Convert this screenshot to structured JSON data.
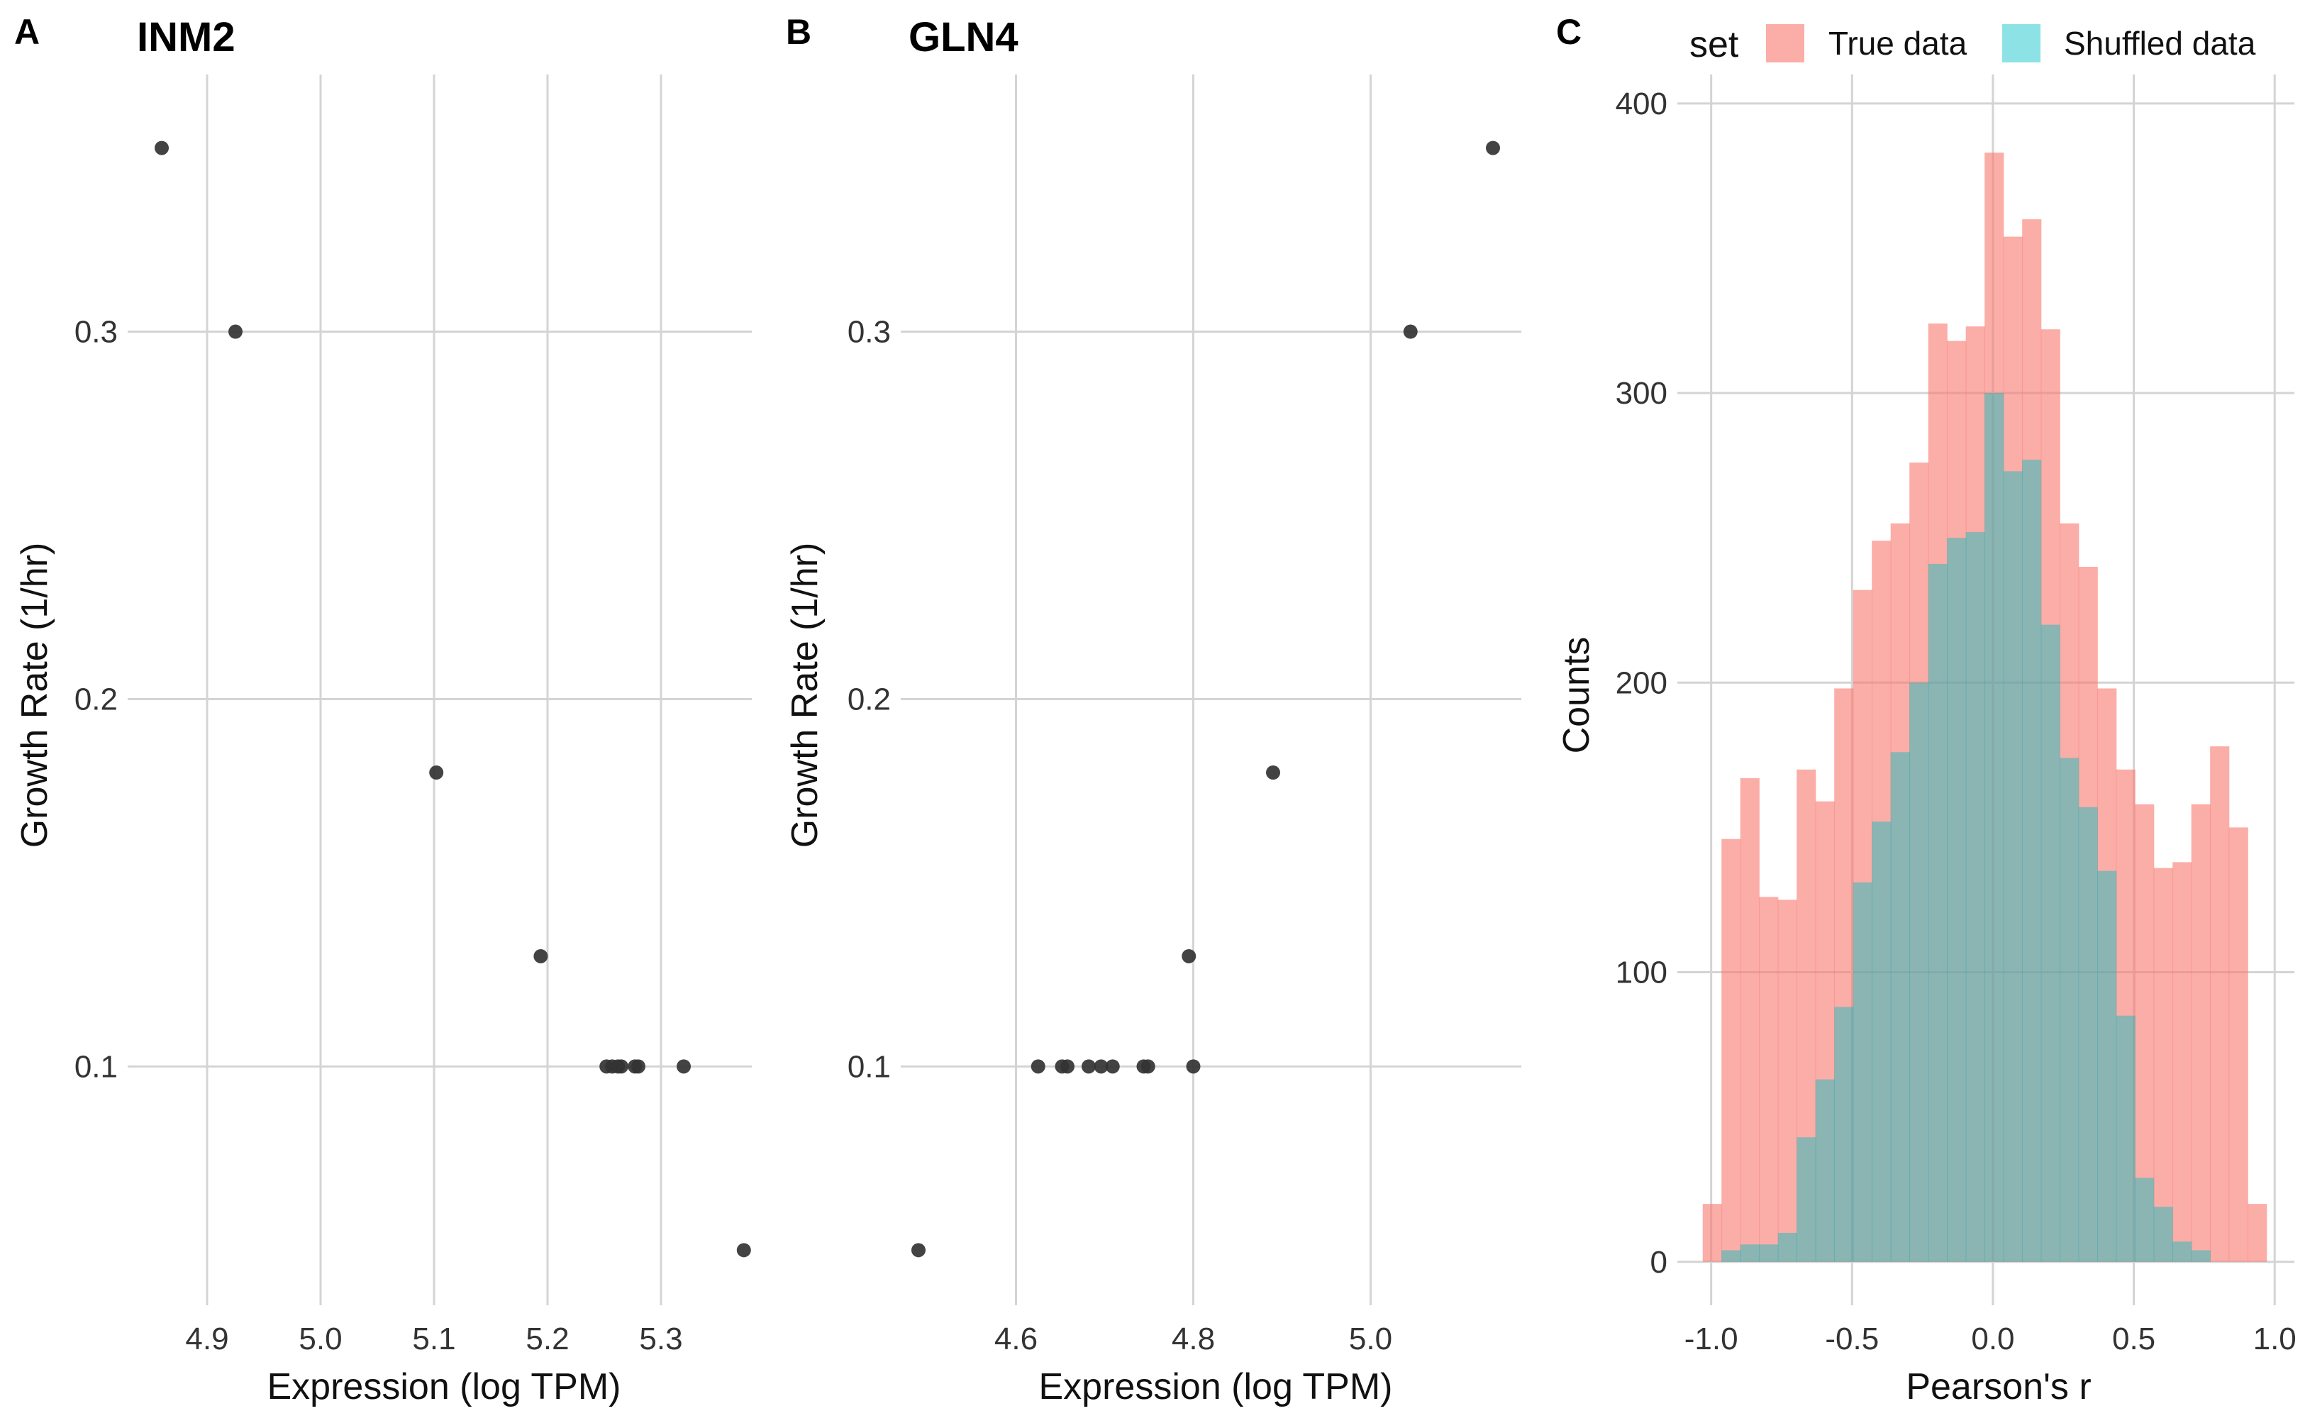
{
  "chart_data": [
    {
      "panel_label": "A",
      "type": "scatter",
      "title": "INM2",
      "xlabel": "Expression (log TPM)",
      "ylabel": "Growth Rate (1/hr)",
      "xlim": [
        4.83,
        5.38
      ],
      "ylim": [
        0.035,
        0.37
      ],
      "xticks": [
        4.9,
        5.0,
        5.1,
        5.2,
        5.3
      ],
      "xtick_labels": [
        "4.9",
        "5.0",
        "5.1",
        "5.2",
        "5.3"
      ],
      "yticks": [
        0.1,
        0.2,
        0.3
      ],
      "ytick_labels": [
        "0.1",
        "0.2",
        "0.3"
      ],
      "grid": true,
      "point_color": "#333333",
      "points": [
        {
          "x": 4.86,
          "y": 0.35
        },
        {
          "x": 4.925,
          "y": 0.3
        },
        {
          "x": 5.102,
          "y": 0.18
        },
        {
          "x": 5.194,
          "y": 0.13
        },
        {
          "x": 5.252,
          "y": 0.1
        },
        {
          "x": 5.257,
          "y": 0.1
        },
        {
          "x": 5.262,
          "y": 0.1
        },
        {
          "x": 5.265,
          "y": 0.1
        },
        {
          "x": 5.277,
          "y": 0.1
        },
        {
          "x": 5.28,
          "y": 0.1
        },
        {
          "x": 5.32,
          "y": 0.1
        },
        {
          "x": 5.373,
          "y": 0.05
        }
      ]
    },
    {
      "panel_label": "B",
      "type": "scatter",
      "title": "GLN4",
      "xlabel": "Expression (log TPM)",
      "ylabel": "Growth Rate (1/hr)",
      "xlim": [
        4.47,
        5.17
      ],
      "ylim": [
        0.035,
        0.37
      ],
      "xticks": [
        4.6,
        4.8,
        5.0
      ],
      "xtick_labels": [
        "4.6",
        "4.8",
        "5.0"
      ],
      "yticks": [
        0.1,
        0.2,
        0.3
      ],
      "ytick_labels": [
        "0.1",
        "0.2",
        "0.3"
      ],
      "grid": true,
      "point_color": "#333333",
      "points": [
        {
          "x": 4.49,
          "y": 0.05
        },
        {
          "x": 4.625,
          "y": 0.1
        },
        {
          "x": 4.652,
          "y": 0.1
        },
        {
          "x": 4.658,
          "y": 0.1
        },
        {
          "x": 4.682,
          "y": 0.1
        },
        {
          "x": 4.696,
          "y": 0.1
        },
        {
          "x": 4.709,
          "y": 0.1
        },
        {
          "x": 4.744,
          "y": 0.1
        },
        {
          "x": 4.749,
          "y": 0.1
        },
        {
          "x": 4.8,
          "y": 0.1
        },
        {
          "x": 4.795,
          "y": 0.13
        },
        {
          "x": 4.89,
          "y": 0.18
        },
        {
          "x": 5.045,
          "y": 0.3
        },
        {
          "x": 5.138,
          "y": 0.35
        }
      ]
    },
    {
      "panel_label": "C",
      "type": "histogram",
      "xlabel": "Pearson's r",
      "ylabel": "Counts",
      "xlim": [
        -1.12,
        1.07
      ],
      "ylim": [
        -15,
        410
      ],
      "xticks": [
        -1.0,
        -0.5,
        0.0,
        0.5,
        1.0
      ],
      "xtick_labels": [
        "-1.0",
        "-0.5",
        "0.0",
        "0.5",
        "1.0"
      ],
      "yticks": [
        0,
        100,
        200,
        300,
        400
      ],
      "ytick_labels": [
        "0",
        "100",
        "200",
        "300",
        "400"
      ],
      "grid": true,
      "legend_position": "top",
      "legend_title": "set",
      "bin_start": -1.03,
      "bin_width": 0.0667,
      "series": [
        {
          "name": "True data",
          "color": "#F8766D",
          "opacity": 0.6,
          "values": [
            20,
            146,
            167,
            126,
            125,
            170,
            159,
            198,
            232,
            249,
            255,
            276,
            324,
            318,
            323,
            383,
            354,
            360,
            322,
            255,
            240,
            198,
            170,
            158,
            136,
            138,
            158,
            178,
            150,
            20
          ]
        },
        {
          "name": "Shuffled data",
          "color": "#00BFC4",
          "opacity": 0.45,
          "values": [
            0,
            4,
            6,
            6,
            10,
            43,
            63,
            88,
            131,
            152,
            176,
            200,
            241,
            250,
            252,
            300,
            273,
            277,
            220,
            174,
            157,
            135,
            85,
            29,
            19,
            7,
            4,
            0,
            0,
            0
          ]
        }
      ]
    }
  ]
}
